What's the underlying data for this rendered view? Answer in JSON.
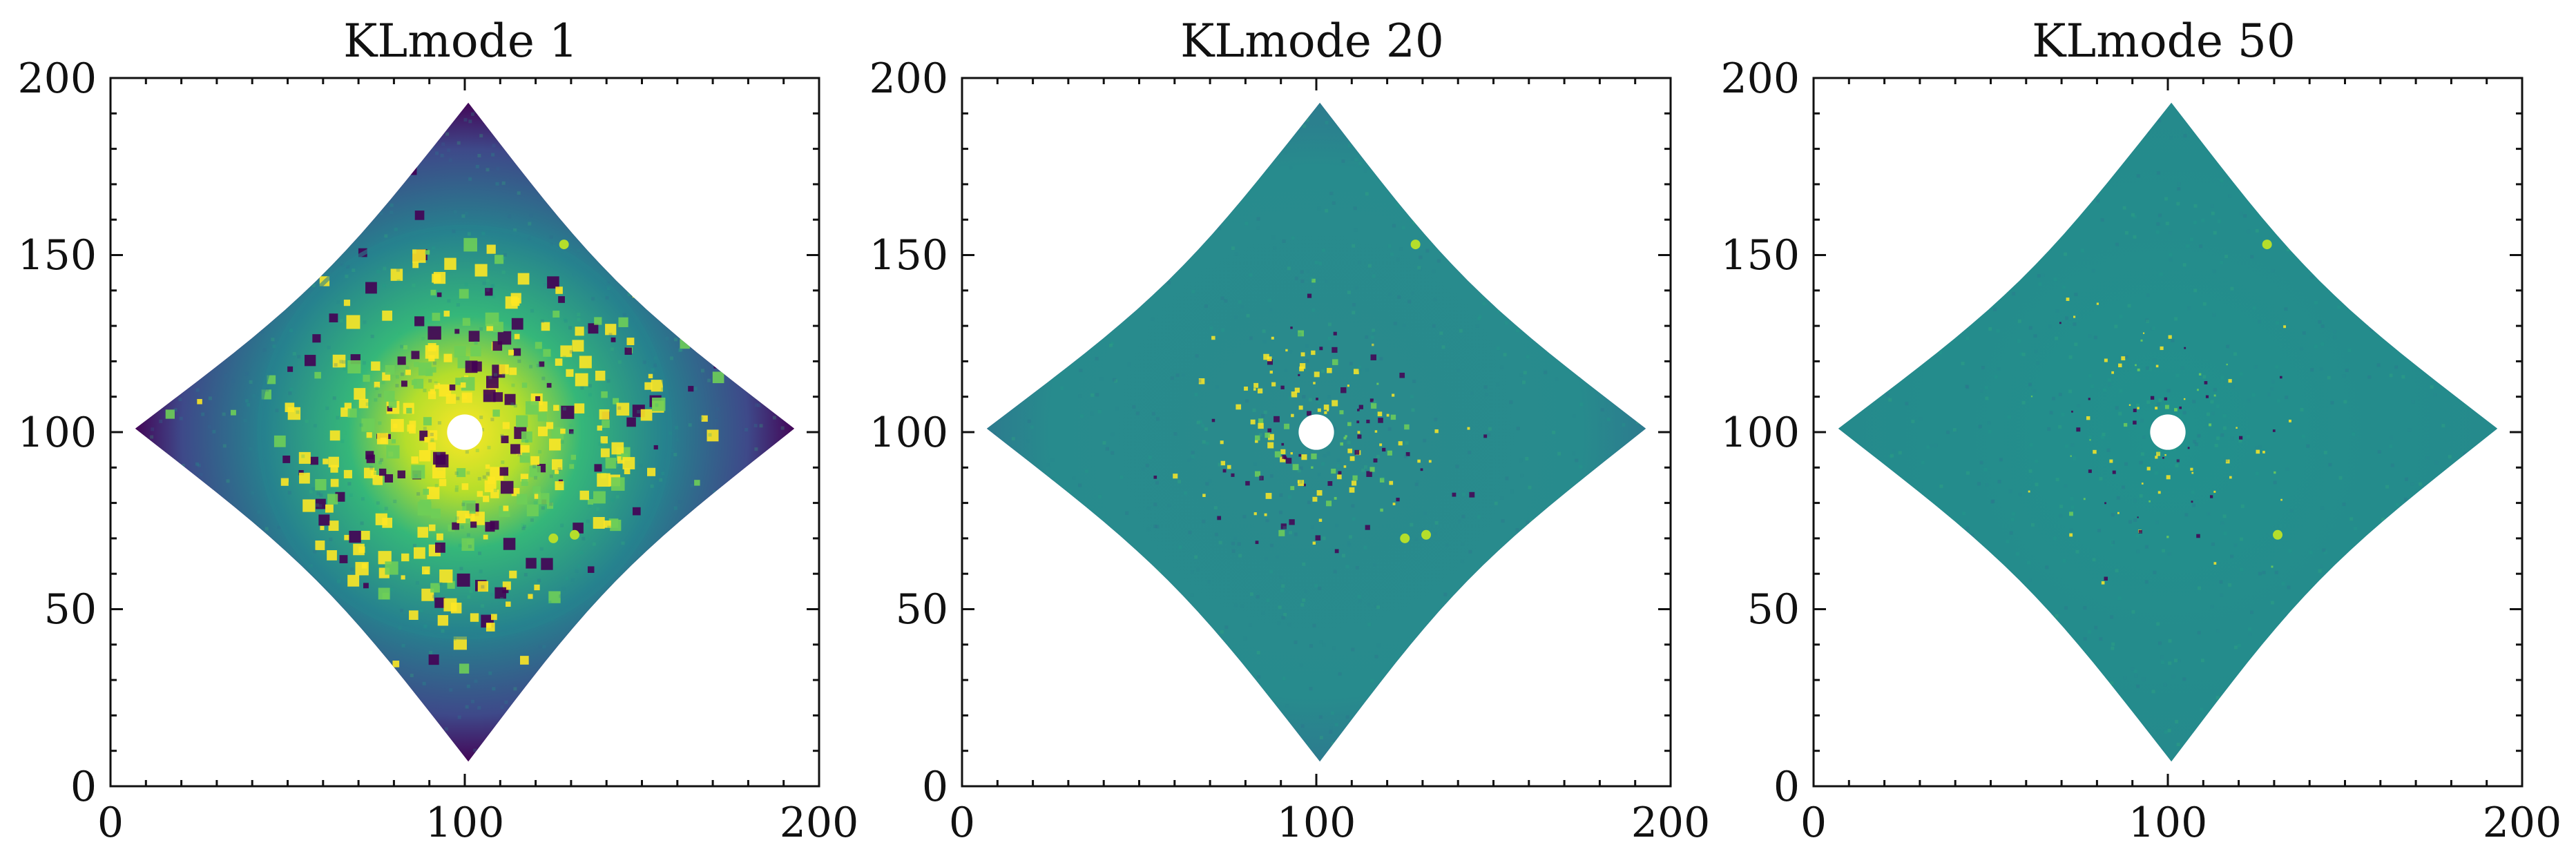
{
  "figure": {
    "colormap": [
      "#440154",
      "#482878",
      "#3e4989",
      "#31688e",
      "#26828e",
      "#1f9e89",
      "#35b779",
      "#6ece58",
      "#b5de2b",
      "#fde725"
    ],
    "background": "#ffffff"
  },
  "chart_data": [
    {
      "type": "heatmap",
      "title": "KLmode 1",
      "xlim": [
        0,
        200
      ],
      "ylim": [
        0,
        200
      ],
      "xticks": [
        0,
        100,
        200
      ],
      "yticks": [
        0,
        50,
        100,
        150,
        200
      ],
      "xtick_labels": [
        "0",
        "100",
        "200"
      ],
      "ytick_labels": [
        "0",
        "50",
        "100",
        "150",
        "200"
      ],
      "grid": false,
      "image_shape": [
        200,
        200
      ],
      "mask_center": [
        100,
        100
      ],
      "mask_radius": 5,
      "point_sources": [
        [
          128,
          153
        ],
        [
          125,
          70
        ],
        [
          131,
          71
        ]
      ],
      "residual_level": "high"
    },
    {
      "type": "heatmap",
      "title": "KLmode 20",
      "xlim": [
        0,
        200
      ],
      "ylim": [
        0,
        200
      ],
      "xticks": [
        0,
        100,
        200
      ],
      "yticks": [
        0,
        50,
        100,
        150,
        200
      ],
      "xtick_labels": [
        "0",
        "100",
        "200"
      ],
      "ytick_labels": [
        "0",
        "50",
        "100",
        "150",
        "200"
      ],
      "grid": false,
      "image_shape": [
        200,
        200
      ],
      "mask_center": [
        100,
        100
      ],
      "mask_radius": 5,
      "point_sources": [
        [
          128,
          153
        ],
        [
          125,
          70
        ],
        [
          131,
          71
        ]
      ],
      "residual_level": "medium"
    },
    {
      "type": "heatmap",
      "title": "KLmode 50",
      "xlim": [
        0,
        200
      ],
      "ylim": [
        0,
        200
      ],
      "xticks": [
        0,
        100,
        200
      ],
      "yticks": [
        0,
        50,
        100,
        150,
        200
      ],
      "xtick_labels": [
        "0",
        "100",
        "200"
      ],
      "ytick_labels": [
        "0",
        "50",
        "100",
        "150",
        "200"
      ],
      "grid": false,
      "image_shape": [
        200,
        200
      ],
      "mask_center": [
        100,
        100
      ],
      "mask_radius": 5,
      "point_sources": [
        [
          128,
          153
        ],
        [
          131,
          71
        ]
      ],
      "residual_level": "low"
    }
  ]
}
